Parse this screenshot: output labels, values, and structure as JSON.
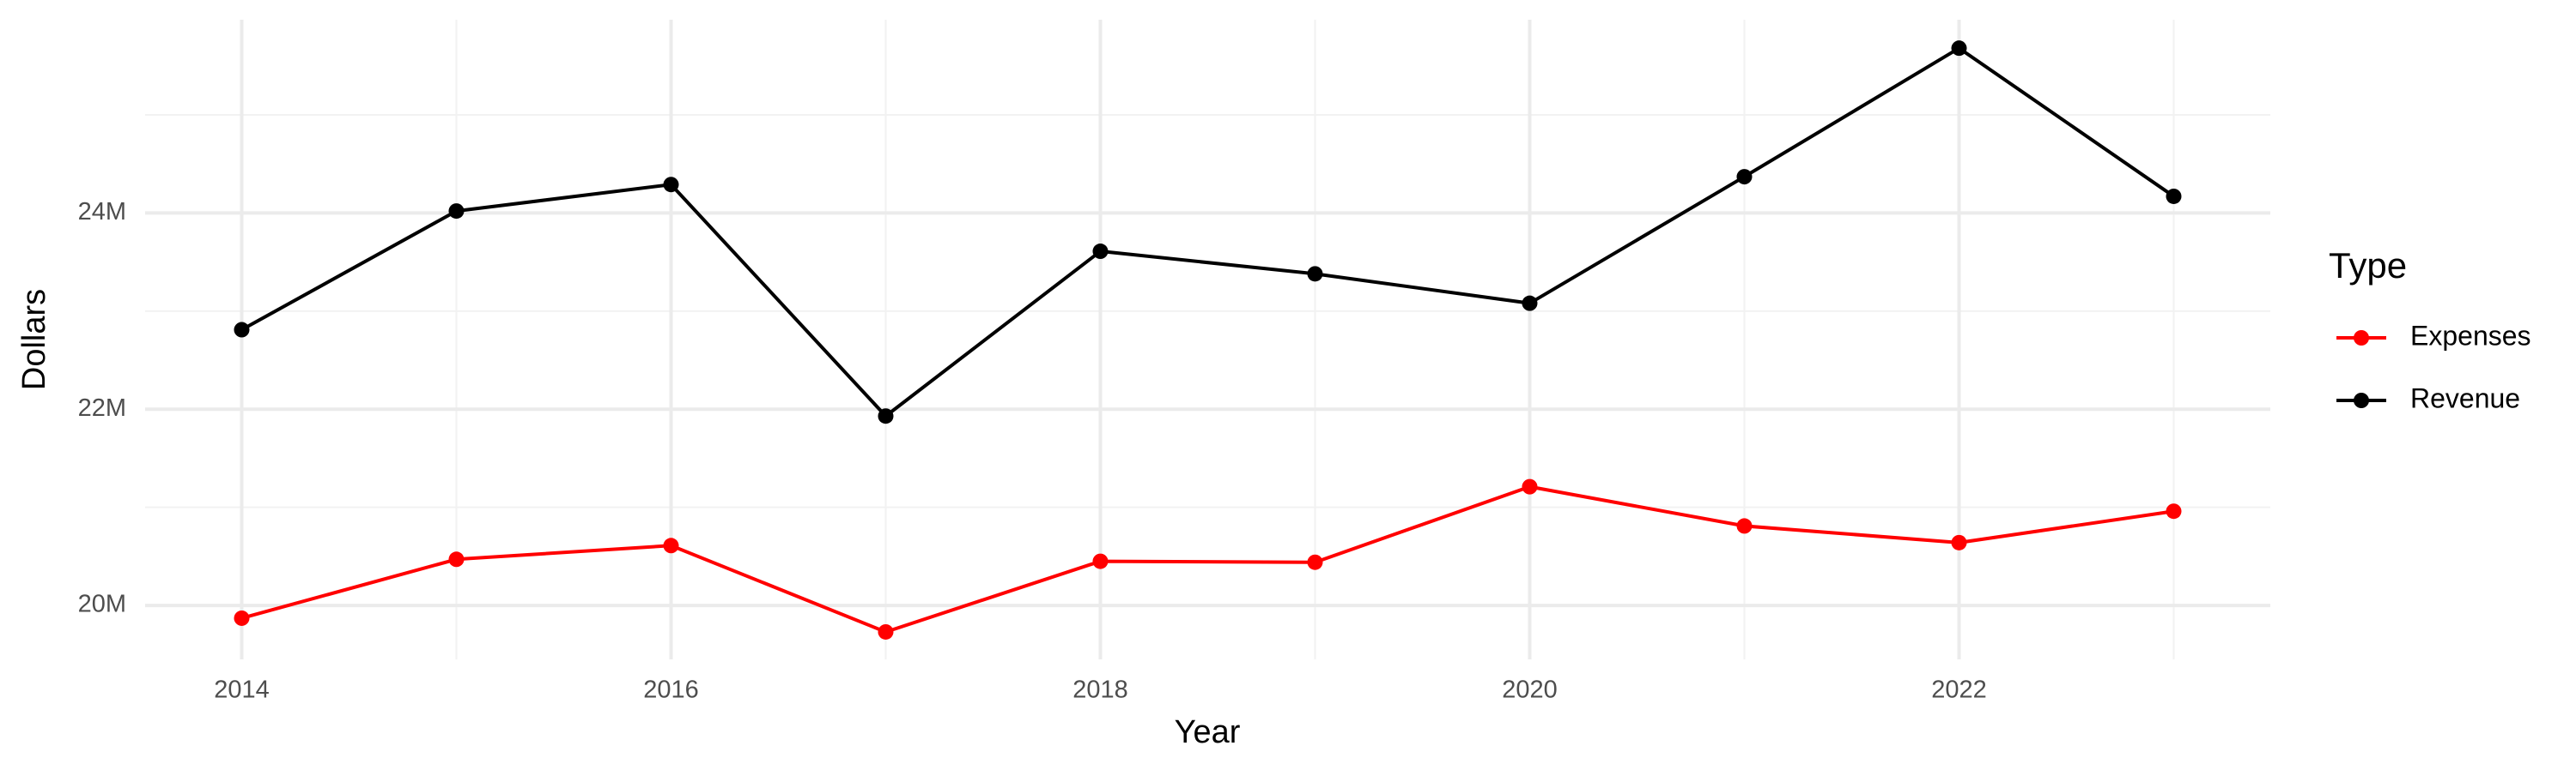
{
  "chart_data": {
    "type": "line",
    "x_label": "Year",
    "y_label": "Dollars",
    "legend_title": "Type",
    "legend_position": "right",
    "x": [
      2014,
      2015,
      2016,
      2017,
      2018,
      2019,
      2020,
      2021,
      2022,
      2023
    ],
    "series": [
      {
        "name": "Expenses",
        "color": "#ff0000",
        "values": [
          19870000,
          20470000,
          20610000,
          19730000,
          20450000,
          20440000,
          21210000,
          20810000,
          20640000,
          20960000
        ]
      },
      {
        "name": "Revenue",
        "color": "#000000",
        "values": [
          22810000,
          24020000,
          24290000,
          21930000,
          23610000,
          23380000,
          23080000,
          24370000,
          25680000,
          24170000
        ]
      }
    ],
    "xlim": [
      2013.55,
      2023.45
    ],
    "ylim": [
      19450000,
      25970000
    ],
    "xticks": [
      2014,
      2016,
      2018,
      2020,
      2022
    ],
    "yticks": [
      {
        "value": 20000000,
        "label": "20M"
      },
      {
        "value": 22000000,
        "label": "22M"
      },
      {
        "value": 24000000,
        "label": "24M"
      }
    ],
    "x_minor_grid": [
      2015,
      2017,
      2019,
      2021,
      2023
    ],
    "y_minor_grid": [
      21000000,
      23000000,
      25000000
    ],
    "grid": true
  }
}
